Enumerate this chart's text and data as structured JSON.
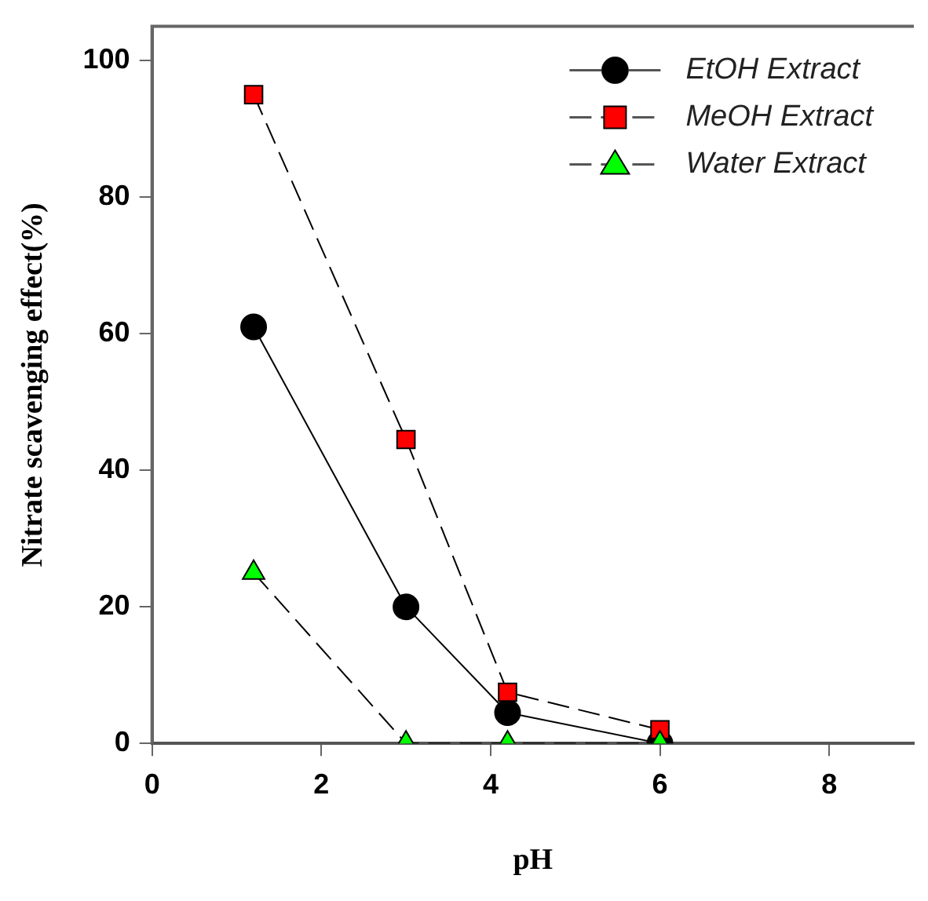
{
  "chart_data": {
    "type": "line",
    "xlabel": "pH",
    "ylabel": "Nitrate scavenging effect(%)",
    "x": [
      1.2,
      3,
      4.2,
      6
    ],
    "series": [
      {
        "name": "EtOH Extract",
        "color": "#000000",
        "values": [
          61,
          20,
          4.5,
          0
        ],
        "marker": "circle",
        "line_style": "solid"
      },
      {
        "name": "MeOH Extract",
        "color": "#ff0000",
        "values": [
          95,
          44.5,
          7.5,
          2
        ],
        "marker": "square",
        "line_style": "dashed"
      },
      {
        "name": "Water Extract",
        "color": "#00ff00",
        "values": [
          25,
          0,
          0,
          0
        ],
        "marker": "triangle",
        "line_style": "dashed"
      }
    ],
    "xlim": [
      0,
      9
    ],
    "xticks": [
      0,
      2,
      4,
      6,
      8
    ],
    "ylim": [
      0,
      105
    ],
    "yticks": [
      0,
      20,
      40,
      60,
      80,
      100
    ],
    "grid": false,
    "legend": "top right"
  }
}
